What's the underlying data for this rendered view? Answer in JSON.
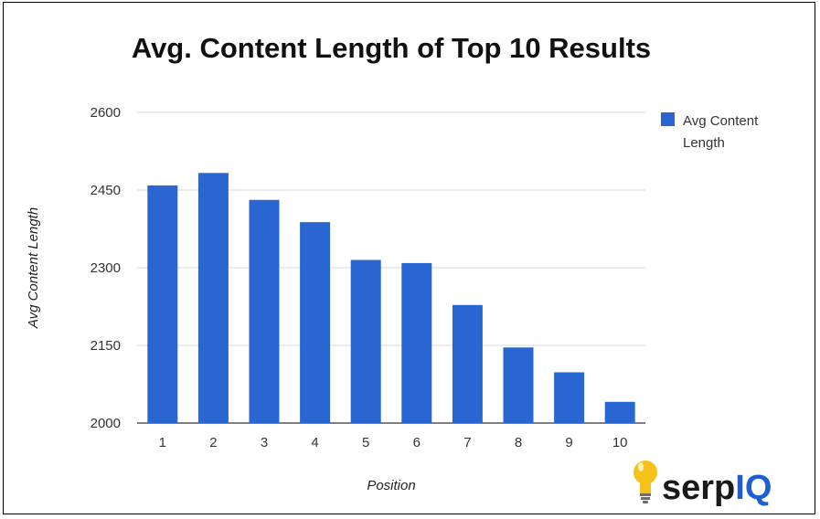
{
  "chart_data": {
    "type": "bar",
    "title": "Avg. Content Length of Top 10 Results",
    "xlabel": "Position",
    "ylabel": "Avg Content Length",
    "categories": [
      "1",
      "2",
      "3",
      "4",
      "5",
      "6",
      "7",
      "8",
      "9",
      "10"
    ],
    "series": [
      {
        "name": "Avg Content Length",
        "values": [
          2459,
          2483,
          2431,
          2388,
          2315,
          2309,
          2228,
          2146,
          2098,
          2041
        ]
      }
    ],
    "ylim": [
      2000,
      2600
    ],
    "yticks": [
      "2000",
      "2150",
      "2300",
      "2450",
      "2600"
    ],
    "grid": true,
    "legend": "right",
    "bar_color": "#2a66d2",
    "grid_color": "#d9d9d9"
  },
  "legend": {
    "line1": "Avg Content",
    "line2": "Length"
  },
  "brand": {
    "name_part1": "serp",
    "name_part2": "IQ",
    "icon": "lightbulb-icon",
    "accent": "#1a5fd6",
    "bulb_color": "#f5c21b"
  }
}
